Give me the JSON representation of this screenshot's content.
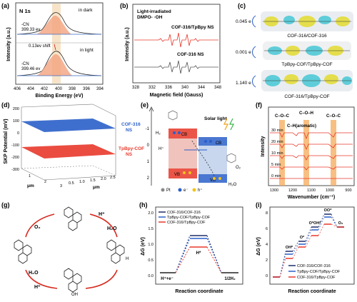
{
  "figure": {
    "panels": {
      "a": {
        "letter": "(a)",
        "element": "N 1s",
        "dark_label": "in dark",
        "light_label": "in light",
        "cn_label": "-CN",
        "dark_energy": "399.33 ev",
        "light_energy": "399.46 ev",
        "shift": "0.13ev shift",
        "xlabel": "Binding Energy (eV)",
        "ylabel": "Intensity (a.u.)",
        "xticks": [
          "406",
          "404",
          "402",
          "400",
          "398",
          "396",
          "394"
        ]
      },
      "b": {
        "letter": "(b)",
        "title_line1": "Light-irradiated",
        "title_line2": "DMPO- ·OH",
        "series1": "COF-316/TpBpy NS",
        "series2": "COF-316 NS",
        "xlabel": "Magnetic field (Gauss)",
        "ylabel": "Intensity (a.u.)",
        "xticks": [
          "328",
          "332",
          "336",
          "340",
          "344",
          "348"
        ]
      },
      "c": {
        "letter": "(c)",
        "items": [
          {
            "value": "0.045 e",
            "label": "COF-316/COF-316"
          },
          {
            "value": "0.001 e",
            "label": "TpBpy-COF/TpBpy-COF"
          },
          {
            "value": "1.140 e",
            "label": "COF-316/TpBpy-COF"
          }
        ]
      },
      "d": {
        "letter": "(d)",
        "ylabel": "SKP Potential (mV)",
        "zticks": [
          "200",
          "100",
          "0",
          "-100",
          "-200",
          "-300"
        ],
        "xlabel": "μm",
        "ylabel2": "μm",
        "xticks": [
          "1",
          "2",
          "3"
        ],
        "yticks": [
          "0.5",
          "1.0",
          "1.5",
          "2.0",
          "2.5"
        ],
        "blue_label_1": "COF-316",
        "blue_label_2": "NS",
        "red_label_1": "TpBpy-COF",
        "red_label_2": "NS"
      },
      "e": {
        "letter": "(e)",
        "yticks": [
          "-1",
          "0",
          "1",
          "2"
        ],
        "solar": "Solar light",
        "h2": "H₂",
        "hplus": "H⁺",
        "cb": "CB",
        "vb": "VB",
        "o2": "O₂",
        "h2o": "H₂O",
        "legend": [
          "Pt",
          "e⁻",
          "h⁺"
        ]
      },
      "f": {
        "letter": "(f)",
        "peak1": "C–O–C",
        "peak2": "C–O–H",
        "peak3": "C–O–C",
        "aromatic": "C–H(aromatic)",
        "times": [
          "30 min",
          "20 min",
          "10 min",
          "5 min",
          "0 min"
        ],
        "xlabel": "Wavenumber (cm⁻¹)",
        "ylabel": "Intensity",
        "xticks": [
          "1300",
          "1200",
          "1100",
          "1000",
          "900"
        ]
      },
      "g": {
        "letter": "(g)",
        "o2": "O₂",
        "h2o_1": "H₂O",
        "h2o_2": "H₂O",
        "hplus_1": "H⁺",
        "hplus_2": "H⁺",
        "oh": "OH",
        "h": "H"
      },
      "h": {
        "letter": "(h)",
        "ylabel": "ΔG (eV)",
        "xlabel": "Reaction coordinate",
        "legend": [
          "COF-316/COF-316",
          "TpBpy-COF/TpBpy-COF",
          "COF-316/TpBpy-COF"
        ],
        "state_left": "H⁺+e⁻",
        "state_mid": "H*",
        "state_right": "1/2H₂",
        "yticks": [
          "2.0",
          "1.5",
          "1.0",
          "0.5",
          "0.0"
        ]
      },
      "i": {
        "letter": "(i)",
        "ylabel": "ΔG (eV)",
        "xlabel": "Reaction coordinate",
        "legend": [
          "COF-316/COF-316",
          "TpBpy-COF/TpBpy-COF",
          "COF-316/TpBpy-COF"
        ],
        "states": [
          "OH*",
          "O*",
          "O*OH*",
          "OO*",
          "O₂"
        ],
        "yticks": [
          "8",
          "6",
          "4",
          "2",
          "0"
        ]
      }
    },
    "colors": {
      "red": "#e8392b",
      "blue": "#2a5fc9",
      "darkblue": "#1e2d6b",
      "gray": "#555555",
      "peak_orange": "#f5a95a"
    }
  }
}
